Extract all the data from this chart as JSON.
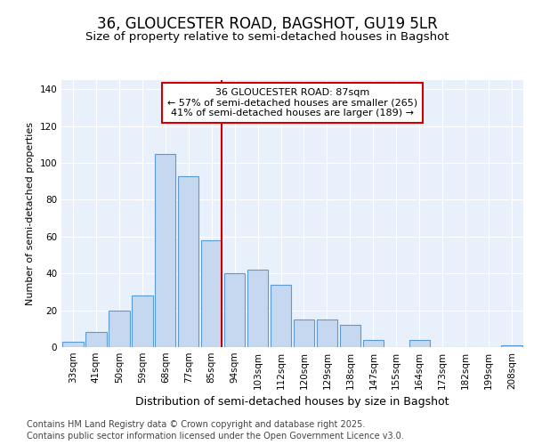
{
  "title": "36, GLOUCESTER ROAD, BAGSHOT, GU19 5LR",
  "subtitle": "Size of property relative to semi-detached houses in Bagshot",
  "xlabel": "Distribution of semi-detached houses by size in Bagshot",
  "ylabel": "Number of semi-detached properties",
  "categories": [
    "33sqm",
    "41sqm",
    "50sqm",
    "59sqm",
    "68sqm",
    "77sqm",
    "85sqm",
    "94sqm",
    "103sqm",
    "112sqm",
    "120sqm",
    "129sqm",
    "138sqm",
    "147sqm",
    "155sqm",
    "164sqm",
    "173sqm",
    "182sqm",
    "199sqm",
    "208sqm"
  ],
  "bar_values": [
    3,
    8,
    20,
    28,
    105,
    93,
    58,
    40,
    42,
    34,
    15,
    15,
    12,
    4,
    0,
    4,
    0,
    0,
    0,
    1
  ],
  "bar_color": "#c5d8f0",
  "bar_edge_color": "#5b9bd5",
  "property_line_index": 6,
  "property_line_color": "#cc0000",
  "annotation_title": "36 GLOUCESTER ROAD: 87sqm",
  "annotation_line1": "← 57% of semi-detached houses are smaller (265)",
  "annotation_line2": "41% of semi-detached houses are larger (189) →",
  "annotation_box_facecolor": "#ffffff",
  "annotation_box_edgecolor": "#cc0000",
  "ylim": [
    0,
    145
  ],
  "yticks": [
    0,
    20,
    40,
    60,
    80,
    100,
    120,
    140
  ],
  "footer_line1": "Contains HM Land Registry data © Crown copyright and database right 2025.",
  "footer_line2": "Contains public sector information licensed under the Open Government Licence v3.0.",
  "fig_bg_color": "#ffffff",
  "plot_bg_color": "#e8f0fb",
  "title_fontsize": 12,
  "subtitle_fontsize": 9.5,
  "ylabel_fontsize": 8,
  "xlabel_fontsize": 9,
  "tick_fontsize": 7.5,
  "annotation_fontsize": 8,
  "footer_fontsize": 7
}
